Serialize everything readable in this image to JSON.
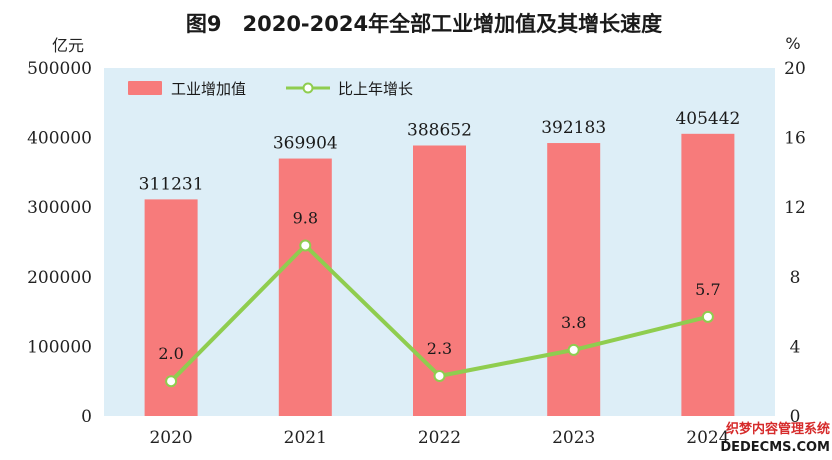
{
  "title": "图9　2020-2024年全部工业增加值及其增长速度",
  "watermark": {
    "line1": "织梦内容管理系统",
    "line2": "DEDECMS.COM"
  },
  "chart_data": {
    "type": "bar",
    "categories": [
      "2020",
      "2021",
      "2022",
      "2023",
      "2024"
    ],
    "series": [
      {
        "name": "工业增加值",
        "type": "bar",
        "axis": "left",
        "color": "#f77b7b",
        "values": [
          311231,
          369904,
          388652,
          392183,
          405442
        ],
        "labels": [
          "311231",
          "369904",
          "388652",
          "392183",
          "405442"
        ]
      },
      {
        "name": "比上年增长",
        "type": "line",
        "axis": "right",
        "color": "#8fcd4f",
        "values": [
          2.0,
          9.8,
          2.3,
          3.8,
          5.7
        ],
        "labels": [
          "2.0",
          "9.8",
          "2.3",
          "3.8",
          "5.7"
        ]
      }
    ],
    "ylabel": "亿元",
    "y2label": "%",
    "ylim": [
      0,
      500000
    ],
    "y2lim": [
      0,
      20
    ],
    "yticks": [
      "0",
      "100000",
      "200000",
      "300000",
      "400000",
      "500000"
    ],
    "y2ticks": [
      "0",
      "4",
      "8",
      "12",
      "16",
      "20"
    ],
    "plot_background": "#ddeef7",
    "grid": false,
    "legend_position": "top-left"
  }
}
